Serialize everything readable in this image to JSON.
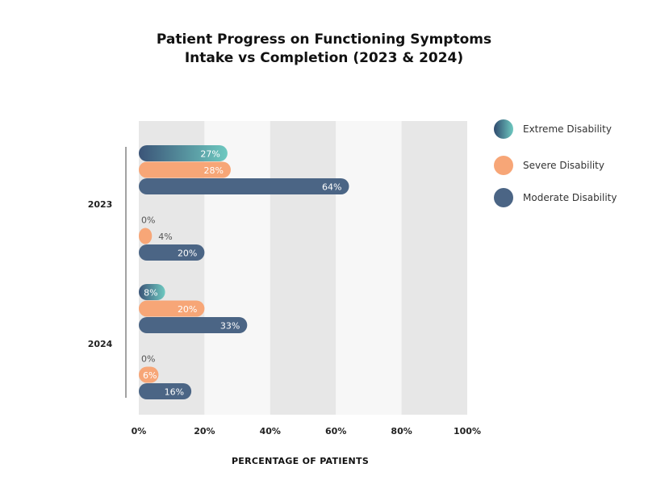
{
  "chart_data": {
    "type": "bar",
    "orientation": "horizontal",
    "title": [
      "Patient Progress on Functioning Symptoms",
      "Intake vs Completion (2023 & 2024)"
    ],
    "xlabel": "PERCENTAGE OF PATIENTS",
    "ylabel": "",
    "xlim": [
      0,
      100
    ],
    "x_ticks": [
      "0%",
      "20%",
      "40%",
      "60%",
      "80%",
      "100%"
    ],
    "groups": [
      {
        "label": "2023",
        "stages": [
          {
            "stage": "intake",
            "values": [
              27,
              28,
              64
            ],
            "labels": [
              "27%",
              "28%",
              "64%"
            ]
          },
          {
            "stage": "completion",
            "values": [
              0,
              4,
              20
            ],
            "labels": [
              "0%",
              "4%",
              "20%"
            ]
          }
        ]
      },
      {
        "label": "2024",
        "stages": [
          {
            "stage": "intake",
            "values": [
              8,
              20,
              33
            ],
            "labels": [
              "8%",
              "20%",
              "33%"
            ]
          },
          {
            "stage": "completion",
            "values": [
              0,
              6,
              16
            ],
            "labels": [
              "0%",
              "6%",
              "16%"
            ]
          }
        ]
      }
    ],
    "series": [
      {
        "name": "Extreme Disability",
        "color_from": "#3b5478",
        "color_to": "#6ec9c0"
      },
      {
        "name": "Severe Disability",
        "color": "#f7a677"
      },
      {
        "name": "Moderate Disability",
        "color": "#4b6585"
      }
    ],
    "legend_position": "right"
  }
}
